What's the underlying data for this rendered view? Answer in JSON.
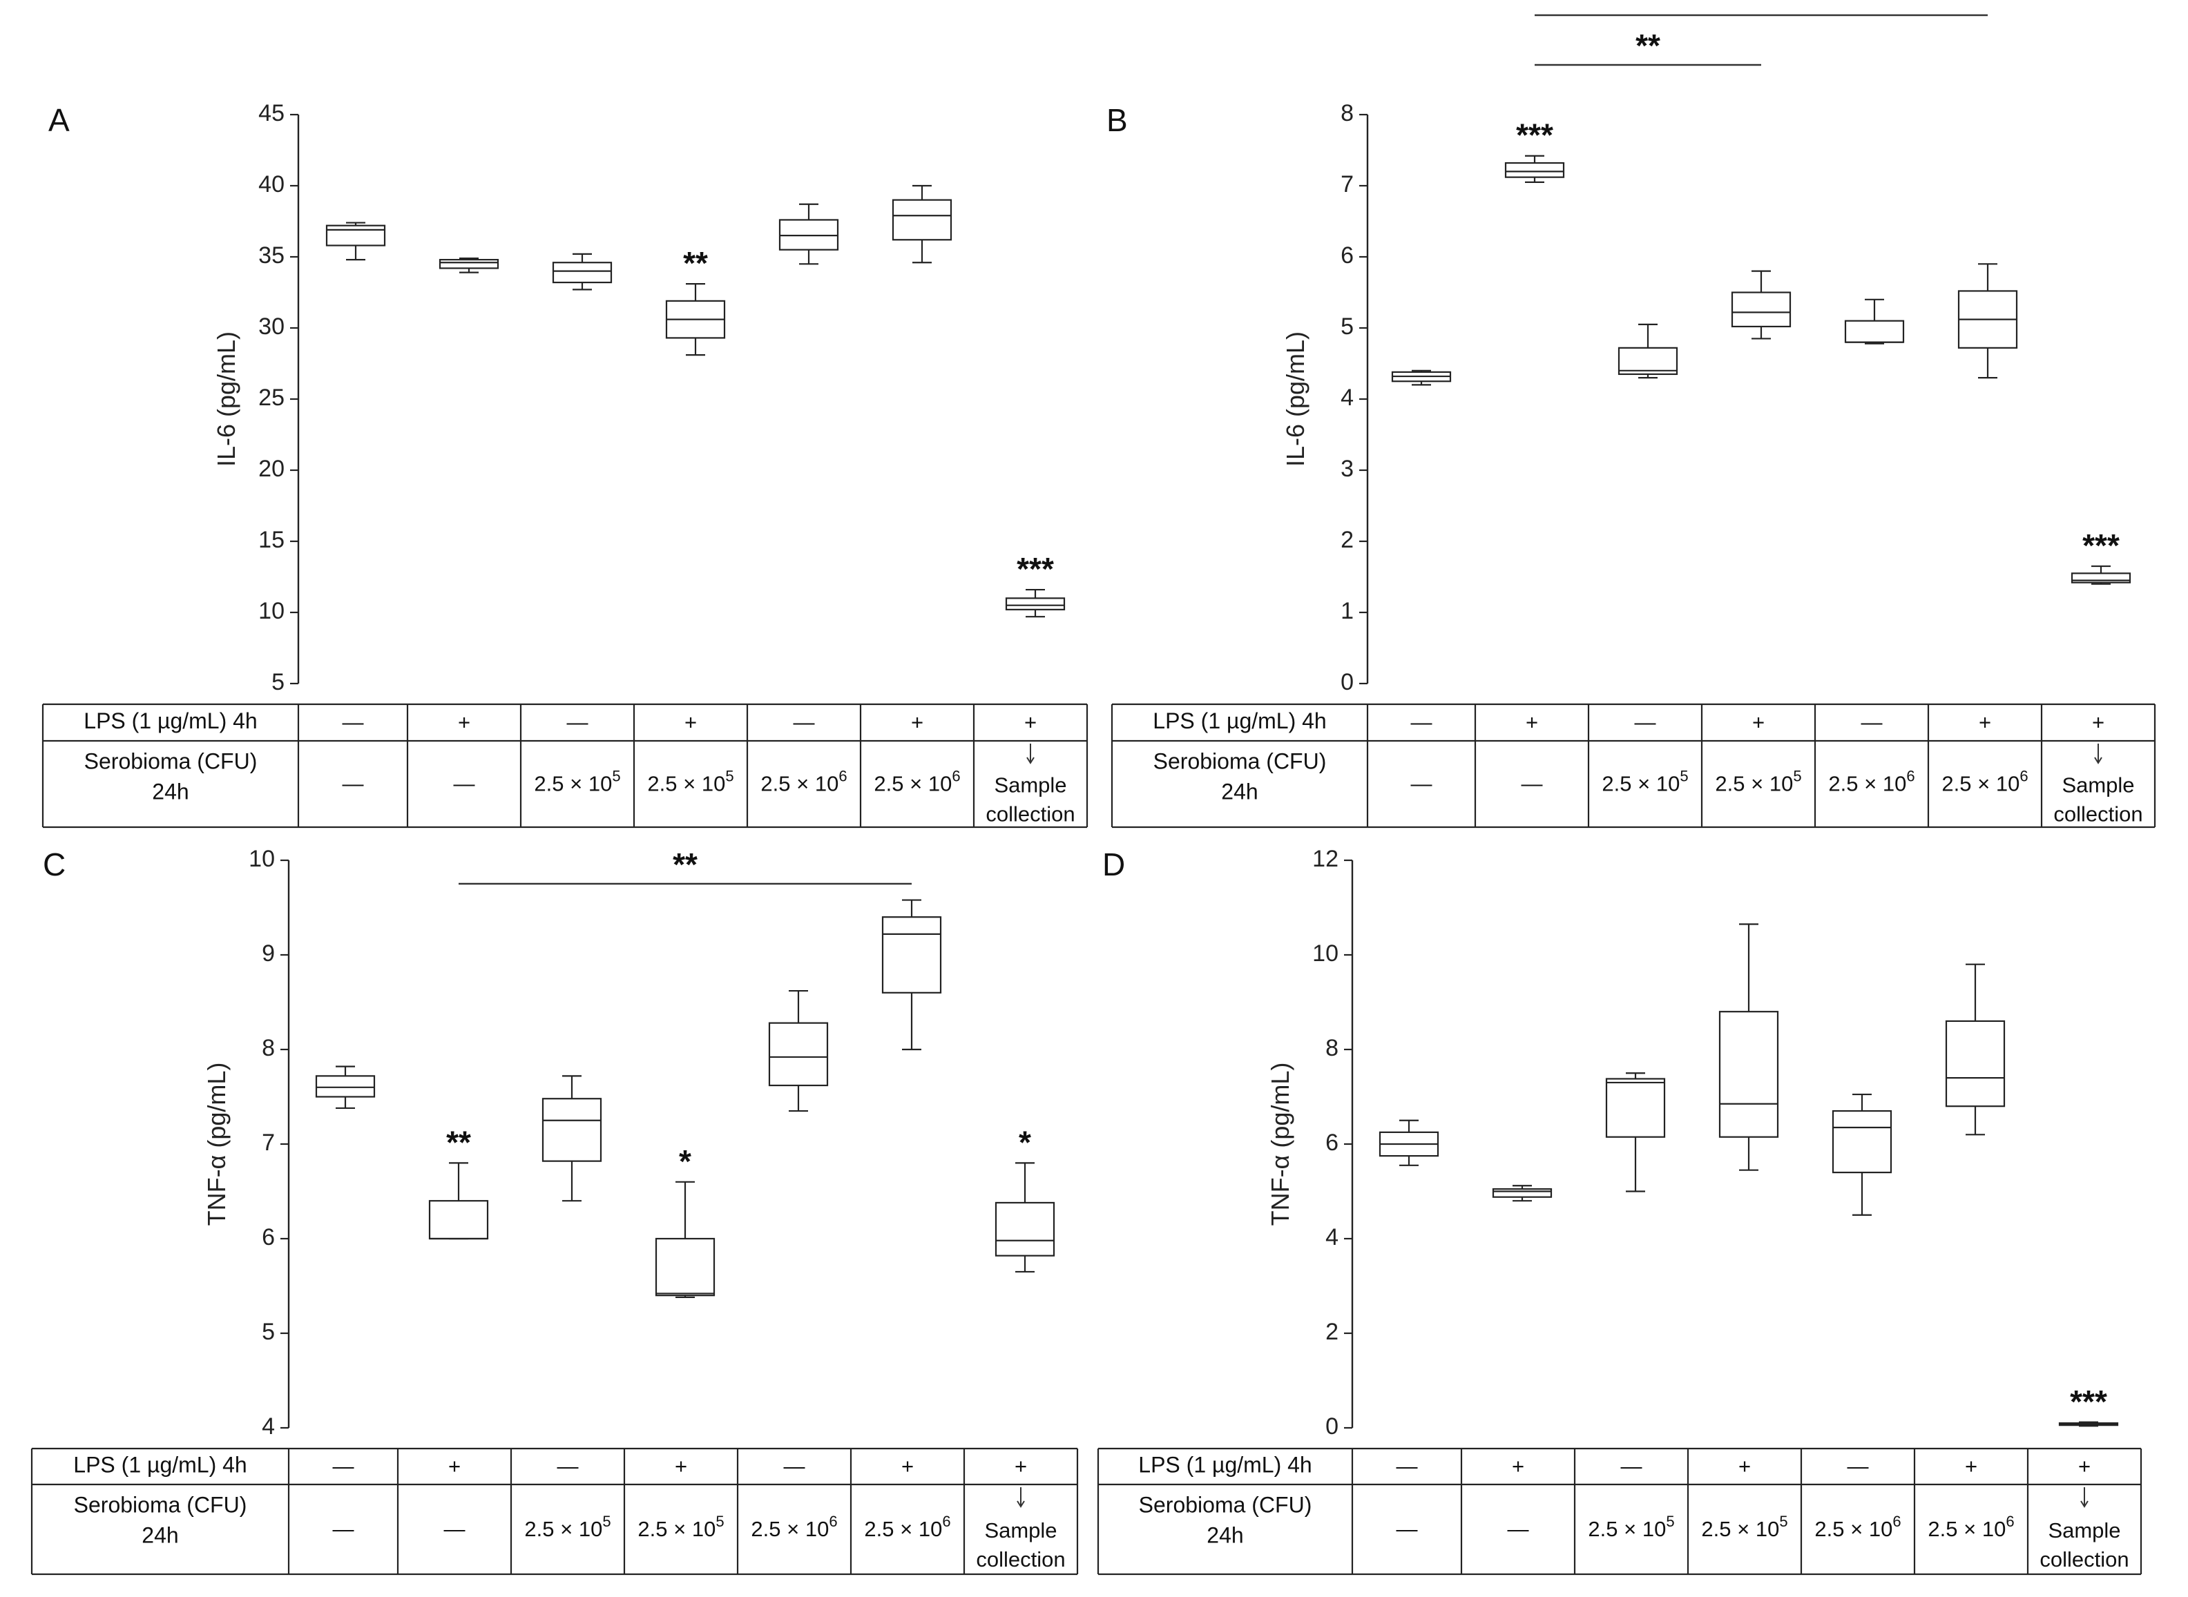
{
  "table": {
    "lps_label": "LPS (1 µg/mL) 4h",
    "sero_label_1": "Serobioma (CFU)",
    "sero_label_2": "24h",
    "lps": [
      "—",
      "+",
      "—",
      "+",
      "—",
      "+",
      "+"
    ],
    "sero": [
      "—",
      "—",
      "2.5 × 10^5",
      "2.5 × 10^5",
      "2.5 × 10^6",
      "2.5 × 10^6",
      "Sample collection"
    ]
  },
  "chart_data": [
    {
      "panel": "A",
      "type": "box",
      "ylabel": "IL-6 (pg/mL)",
      "ylim": [
        5,
        45
      ],
      "yticks": [
        5,
        10,
        15,
        20,
        25,
        30,
        35,
        40,
        45
      ],
      "boxes": [
        {
          "min": 34.8,
          "q1": 35.8,
          "median": 36.9,
          "q3": 37.2,
          "max": 37.4,
          "sig": ""
        },
        {
          "min": 33.9,
          "q1": 34.2,
          "median": 34.6,
          "q3": 34.8,
          "max": 34.9,
          "sig": ""
        },
        {
          "min": 32.7,
          "q1": 33.2,
          "median": 34.0,
          "q3": 34.6,
          "max": 35.2,
          "sig": ""
        },
        {
          "min": 28.1,
          "q1": 29.3,
          "median": 30.6,
          "q3": 31.9,
          "max": 33.1,
          "sig": "**"
        },
        {
          "min": 34.5,
          "q1": 35.5,
          "median": 36.5,
          "q3": 37.6,
          "max": 38.7,
          "sig": ""
        },
        {
          "min": 34.6,
          "q1": 36.2,
          "median": 37.9,
          "q3": 39.0,
          "max": 40.0,
          "sig": ""
        },
        {
          "min": 9.7,
          "q1": 10.2,
          "median": 10.5,
          "q3": 11.0,
          "max": 11.6,
          "sig": "***"
        }
      ],
      "brackets": []
    },
    {
      "panel": "B",
      "type": "box",
      "ylabel": "IL-6 (pg/mL)",
      "ylim": [
        0,
        8
      ],
      "yticks": [
        0,
        1,
        2,
        3,
        4,
        5,
        6,
        7,
        8
      ],
      "boxes": [
        {
          "min": 4.2,
          "q1": 4.25,
          "median": 4.32,
          "q3": 4.38,
          "max": 4.4,
          "sig": ""
        },
        {
          "min": 7.05,
          "q1": 7.12,
          "median": 7.2,
          "q3": 7.32,
          "max": 7.42,
          "sig": "***"
        },
        {
          "min": 4.3,
          "q1": 4.35,
          "median": 4.4,
          "q3": 4.72,
          "max": 5.05,
          "sig": ""
        },
        {
          "min": 4.85,
          "q1": 5.02,
          "median": 5.22,
          "q3": 5.5,
          "max": 5.8,
          "sig": ""
        },
        {
          "min": 4.78,
          "q1": 4.8,
          "median": 4.8,
          "q3": 5.1,
          "max": 5.4,
          "sig": ""
        },
        {
          "min": 4.3,
          "q1": 4.72,
          "median": 5.12,
          "q3": 5.52,
          "max": 5.9,
          "sig": ""
        },
        {
          "min": 1.4,
          "q1": 1.42,
          "median": 1.45,
          "q3": 1.55,
          "max": 1.65,
          "sig": "***"
        }
      ],
      "brackets": [
        {
          "from": 1,
          "to": 5,
          "label": "**",
          "level": 2
        },
        {
          "from": 1,
          "to": 3,
          "label": "**",
          "level": 1
        }
      ]
    },
    {
      "panel": "C",
      "type": "box",
      "ylabel": "TNF-α (pg/mL)",
      "ylim": [
        4,
        10
      ],
      "yticks": [
        4,
        5,
        6,
        7,
        8,
        9,
        10
      ],
      "boxes": [
        {
          "min": 7.38,
          "q1": 7.5,
          "median": 7.6,
          "q3": 7.72,
          "max": 7.82,
          "sig": ""
        },
        {
          "min": 6.0,
          "q1": 6.0,
          "median": 6.0,
          "q3": 6.4,
          "max": 6.8,
          "sig": "**"
        },
        {
          "min": 6.4,
          "q1": 6.82,
          "median": 7.25,
          "q3": 7.48,
          "max": 7.72,
          "sig": ""
        },
        {
          "min": 5.38,
          "q1": 5.4,
          "median": 5.42,
          "q3": 6.0,
          "max": 6.6,
          "sig": "*"
        },
        {
          "min": 7.35,
          "q1": 7.62,
          "median": 7.92,
          "q3": 8.28,
          "max": 8.62,
          "sig": ""
        },
        {
          "min": 8.0,
          "q1": 8.6,
          "median": 9.22,
          "q3": 9.4,
          "max": 9.58,
          "sig": ""
        },
        {
          "min": 5.65,
          "q1": 5.82,
          "median": 5.98,
          "q3": 6.38,
          "max": 6.8,
          "sig": "*"
        }
      ],
      "brackets": [
        {
          "from": 1,
          "to": 5,
          "label": "**",
          "level": 1
        }
      ]
    },
    {
      "panel": "D",
      "type": "box",
      "ylabel": "TNF-α (pg/mL)",
      "ylim": [
        0,
        12
      ],
      "yticks": [
        0,
        2,
        4,
        6,
        8,
        10,
        12
      ],
      "boxes": [
        {
          "min": 5.55,
          "q1": 5.75,
          "median": 6.0,
          "q3": 6.25,
          "max": 6.5,
          "sig": ""
        },
        {
          "min": 4.8,
          "q1": 4.88,
          "median": 5.0,
          "q3": 5.05,
          "max": 5.12,
          "sig": ""
        },
        {
          "min": 5.0,
          "q1": 6.15,
          "median": 7.3,
          "q3": 7.38,
          "max": 7.5,
          "sig": ""
        },
        {
          "min": 5.45,
          "q1": 6.15,
          "median": 6.85,
          "q3": 8.8,
          "max": 10.65,
          "sig": ""
        },
        {
          "min": 4.5,
          "q1": 5.4,
          "median": 6.35,
          "q3": 6.7,
          "max": 7.05,
          "sig": ""
        },
        {
          "min": 6.2,
          "q1": 6.8,
          "median": 7.4,
          "q3": 8.6,
          "max": 9.8,
          "sig": ""
        },
        {
          "min": 0.04,
          "q1": 0.06,
          "median": 0.08,
          "q3": 0.1,
          "max": 0.12,
          "sig": "***"
        }
      ],
      "brackets": []
    }
  ]
}
